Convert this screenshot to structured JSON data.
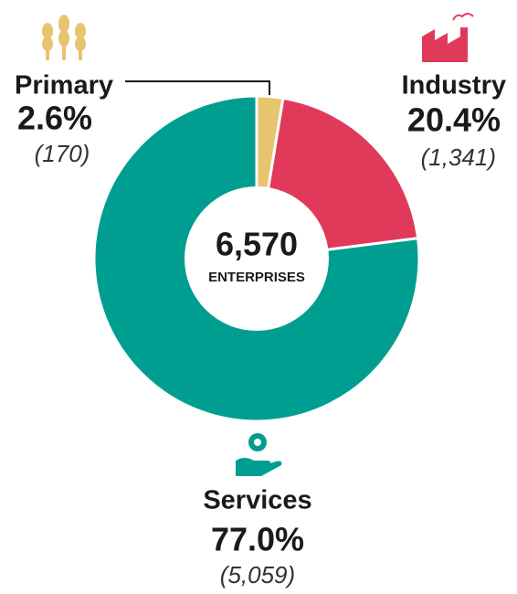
{
  "chart_data": {
    "type": "donut",
    "categories": [
      "Primary",
      "Industry",
      "Services"
    ],
    "values": [
      2.6,
      20.4,
      77.0
    ],
    "value_labels": [
      "2.6%",
      "20.4%",
      "77.0%"
    ],
    "count_labels": [
      "(170)",
      "(1,341)",
      "(5,059)"
    ],
    "colors": [
      "#e8c46e",
      "#e0395a",
      "#009e90"
    ],
    "center_label": "6,570",
    "center_sublabel": "ENTERPRISES"
  }
}
